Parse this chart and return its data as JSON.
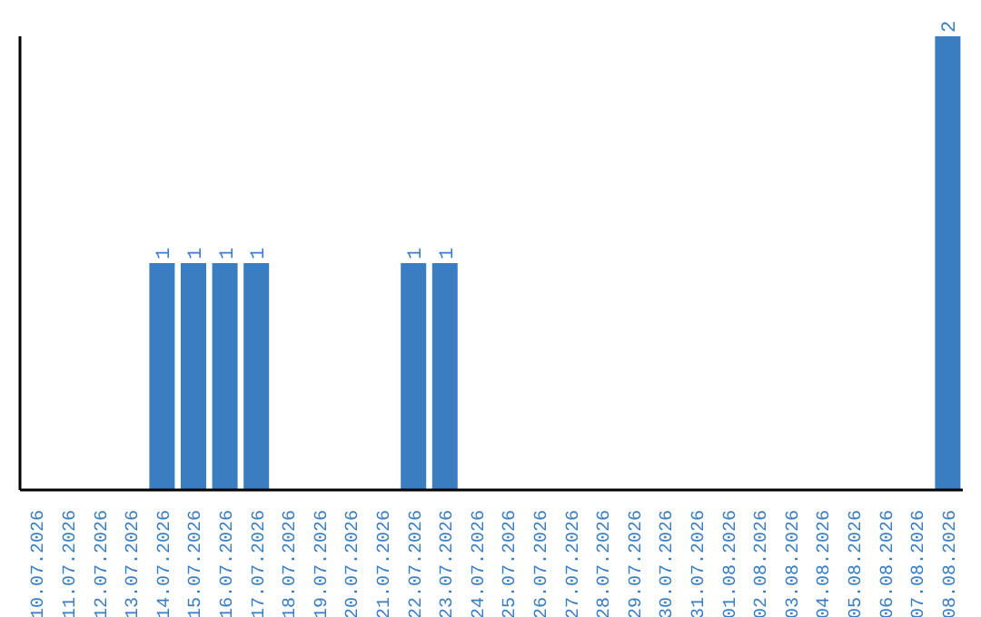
{
  "chart_data": {
    "type": "bar",
    "categories": [
      "10.07.2026",
      "11.07.2026",
      "12.07.2026",
      "13.07.2026",
      "14.07.2026",
      "15.07.2026",
      "16.07.2026",
      "17.07.2026",
      "18.07.2026",
      "19.07.2026",
      "20.07.2026",
      "21.07.2026",
      "22.07.2026",
      "23.07.2026",
      "24.07.2026",
      "25.07.2026",
      "26.07.2026",
      "27.07.2026",
      "28.07.2026",
      "29.07.2026",
      "30.07.2026",
      "31.07.2026",
      "01.08.2026",
      "02.08.2026",
      "03.08.2026",
      "04.08.2026",
      "05.08.2026",
      "06.08.2026",
      "07.08.2026",
      "08.08.2026"
    ],
    "values": [
      0,
      0,
      0,
      0,
      1,
      1,
      1,
      1,
      0,
      0,
      0,
      0,
      1,
      1,
      0,
      0,
      0,
      0,
      0,
      0,
      0,
      0,
      0,
      0,
      0,
      0,
      0,
      0,
      0,
      2
    ],
    "value_labels": [
      null,
      null,
      null,
      null,
      "1",
      "1",
      "1",
      "1",
      null,
      null,
      null,
      null,
      "1",
      "1",
      null,
      null,
      null,
      null,
      null,
      null,
      null,
      null,
      null,
      null,
      null,
      null,
      null,
      null,
      null,
      "2"
    ],
    "color": "#3b7dc1"
  }
}
